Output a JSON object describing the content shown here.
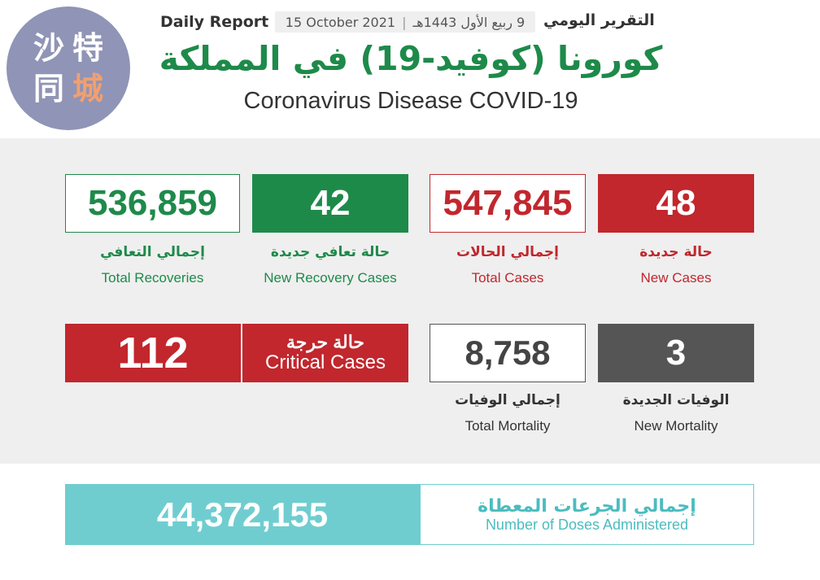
{
  "header": {
    "daily_report_en": "Daily Report",
    "date_gregorian": "15 October 2021",
    "date_hijri": "9 ربيع الأول 1443هـ",
    "date_separator": "|",
    "daily_report_ar": "التقرير اليومي",
    "title_ar": "كورونا (كوفيد-19) في المملكة",
    "title_en": "Coronavirus Disease COVID-19"
  },
  "logo": {
    "chars": [
      "沙",
      "特",
      "同",
      "城"
    ]
  },
  "stats": {
    "total_recoveries": {
      "value": "536,859",
      "label_ar": "إجمالي التعافي",
      "label_en": "Total Recoveries"
    },
    "new_recovery_cases": {
      "value": "42",
      "label_ar": "حالة تعافي جديدة",
      "label_en": "New Recovery Cases"
    },
    "total_cases": {
      "value": "547,845",
      "label_ar": "إجمالي الحالات",
      "label_en": "Total Cases"
    },
    "new_cases": {
      "value": "48",
      "label_ar": "حالة جديدة",
      "label_en": "New Cases"
    },
    "critical_cases": {
      "value": "112",
      "label_ar": "حالة حرجة",
      "label_en": "Critical Cases"
    },
    "total_mortality": {
      "value": "8,758",
      "label_ar": "إجمالي الوفيات",
      "label_en": "Total Mortality"
    },
    "new_mortality": {
      "value": "3",
      "label_ar": "الوفيات الجديدة",
      "label_en": "New Mortality"
    }
  },
  "doses": {
    "value": "44,372,155",
    "label_ar": "إجمالي الجرعات المعطاة",
    "label_en": "Number of Doses Administered"
  },
  "colors": {
    "green": "#1e8a4a",
    "red": "#c1272d",
    "gray": "#555555",
    "teal": "#6fcdd0",
    "logo": "#9094b6"
  }
}
